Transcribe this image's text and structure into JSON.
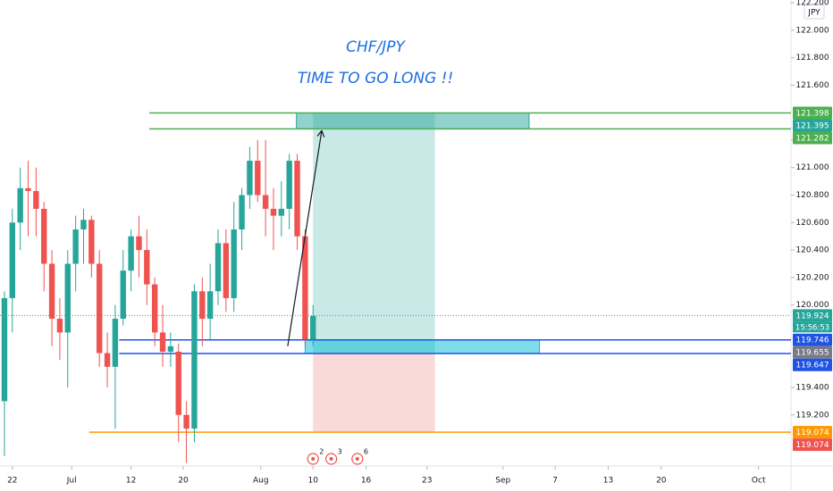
{
  "chart_data": {
    "type": "candlestick",
    "title": "CHF/JPY",
    "subtitle": "TIME TO GO LONG !!",
    "currency": "JPY",
    "up_color": "#26a69a",
    "down_color": "#ef5350",
    "x": [
      0,
      1,
      2,
      3,
      4,
      5,
      6,
      7,
      8,
      9,
      10,
      11,
      12,
      13,
      14,
      15,
      16,
      17,
      18,
      19,
      20,
      21,
      22,
      23,
      24,
      25,
      26,
      27,
      28,
      29,
      30,
      31,
      32,
      33,
      34,
      35,
      36,
      37,
      38,
      39
    ],
    "open": [
      119.3,
      120.05,
      120.6,
      120.85,
      120.83,
      120.7,
      120.3,
      119.9,
      119.8,
      120.3,
      120.55,
      120.62,
      120.3,
      119.65,
      119.55,
      119.9,
      120.25,
      120.5,
      120.4,
      120.15,
      119.8,
      119.66,
      119.66,
      119.2,
      119.1,
      120.1,
      119.9,
      120.1,
      120.45,
      120.05,
      120.55,
      120.8,
      121.05,
      120.8,
      120.7,
      120.65,
      120.7,
      121.05,
      120.5,
      119.75
    ],
    "high": [
      120.1,
      120.7,
      121.0,
      121.05,
      121.0,
      120.75,
      120.4,
      120.05,
      120.4,
      120.65,
      120.7,
      120.65,
      120.4,
      119.8,
      120.0,
      120.4,
      120.55,
      120.65,
      120.55,
      120.2,
      120.0,
      119.8,
      119.72,
      119.3,
      120.15,
      120.2,
      120.3,
      120.55,
      120.55,
      120.75,
      120.85,
      121.15,
      121.2,
      121.2,
      120.85,
      120.9,
      121.1,
      121.1,
      120.55,
      120.0
    ],
    "low": [
      118.9,
      119.8,
      120.4,
      120.5,
      120.5,
      120.1,
      119.7,
      119.6,
      119.4,
      120.1,
      120.3,
      120.2,
      119.55,
      119.4,
      119.1,
      119.85,
      120.1,
      120.2,
      120.0,
      119.7,
      119.55,
      119.55,
      119.0,
      118.85,
      119.0,
      119.7,
      119.75,
      120.0,
      119.95,
      119.95,
      120.4,
      120.7,
      120.75,
      120.5,
      120.4,
      120.5,
      120.55,
      120.4,
      119.7,
      119.7
    ],
    "close": [
      120.05,
      120.6,
      120.85,
      120.83,
      120.7,
      120.3,
      119.9,
      119.8,
      120.3,
      120.55,
      120.62,
      120.3,
      119.65,
      119.55,
      119.9,
      120.25,
      120.5,
      120.4,
      120.15,
      119.8,
      119.66,
      119.7,
      119.2,
      119.1,
      120.1,
      119.9,
      120.1,
      120.45,
      120.05,
      120.55,
      120.8,
      121.05,
      120.8,
      120.7,
      120.65,
      120.7,
      121.05,
      120.5,
      119.75,
      119.92
    ],
    "xlim": [
      -0.56,
      99.4
    ],
    "xticks": [
      {
        "value": 1,
        "label": "22"
      },
      {
        "value": 8.5,
        "label": "Jul"
      },
      {
        "value": 16,
        "label": "12"
      },
      {
        "value": 22.6,
        "label": "20"
      },
      {
        "value": 32.4,
        "label": "Aug"
      },
      {
        "value": 39,
        "label": "10"
      },
      {
        "value": 45.7,
        "label": "16"
      },
      {
        "value": 53.4,
        "label": "23"
      },
      {
        "value": 63,
        "label": "Sep"
      },
      {
        "value": 69.6,
        "label": "7"
      },
      {
        "value": 76.3,
        "label": "13"
      },
      {
        "value": 83,
        "label": "20"
      },
      {
        "value": 95.3,
        "label": "Oct"
      }
    ],
    "ylim": [
      118.828,
      122.22
    ],
    "yticks": [
      {
        "value": 119.2,
        "label": "119.200"
      },
      {
        "value": 119.4,
        "label": "119.400"
      },
      {
        "value": 120,
        "label": "120.000"
      },
      {
        "value": 120.2,
        "label": "120.200"
      },
      {
        "value": 120.4,
        "label": "120.400"
      },
      {
        "value": 120.6,
        "label": "120.600"
      },
      {
        "value": 120.8,
        "label": "120.800"
      },
      {
        "value": 121,
        "label": "121.000"
      },
      {
        "value": 121.2,
        "label": "121.200"
      },
      {
        "value": 121.6,
        "label": "121.600"
      },
      {
        "value": 121.8,
        "label": "121.800"
      },
      {
        "value": 122,
        "label": "122.000"
      },
      {
        "value": 122.2,
        "label": "122.200"
      }
    ],
    "current_price": 119.924,
    "countdown": "15:56:53",
    "hlines": [
      {
        "value": 121.398,
        "from": 18.3,
        "color": "#4caf50"
      },
      {
        "value": 121.282,
        "from": 18.3,
        "color": "#4caf50"
      },
      {
        "value": 119.746,
        "from": 14.5,
        "color": "#1e53e5"
      },
      {
        "value": 119.647,
        "from": 14.5,
        "color": "#1e53e5"
      },
      {
        "value": 119.074,
        "from": 10.7,
        "color": "#ff9800"
      }
    ],
    "zones": [
      {
        "top": 121.398,
        "bottom": 121.282,
        "from": 36.9,
        "to": 66.3,
        "color": "#26a69a"
      },
      {
        "top": 119.746,
        "bottom": 119.647,
        "from": 38,
        "to": 67.6,
        "color": "#00bcd4"
      }
    ],
    "position": {
      "entry": 119.655,
      "target": 121.395,
      "stop": 119.074,
      "from": 39,
      "to": 54.4
    },
    "arrow": {
      "x0": 35.8,
      "y0": 119.7,
      "x1": 40.1,
      "y1": 121.27
    },
    "price_labels": [
      {
        "value": 121.398,
        "label": "121.398",
        "color": "#4caf50"
      },
      {
        "value": 121.395,
        "label": "121.395",
        "color": "#26a69a"
      },
      {
        "value": 121.282,
        "label": "121.282",
        "color": "#4caf50"
      },
      {
        "value": 119.924,
        "label": "119.924",
        "color": "#26a69a"
      },
      {
        "value": 119.746,
        "label": "119.746",
        "color": "#1e53e5"
      },
      {
        "value": 119.655,
        "label": "119.655",
        "color": "#787b86"
      },
      {
        "value": 119.647,
        "label": "119.647",
        "color": "#1e53e5"
      },
      {
        "value": 119.074,
        "label": "119.074",
        "color": "#ff9800"
      },
      {
        "value": 119.074,
        "label": "119.074",
        "color": "#ef5350"
      }
    ],
    "events": [
      {
        "x": 39,
        "count": 2
      },
      {
        "x": 41.3,
        "count": 3
      },
      {
        "x": 44.6,
        "count": 6
      }
    ]
  }
}
